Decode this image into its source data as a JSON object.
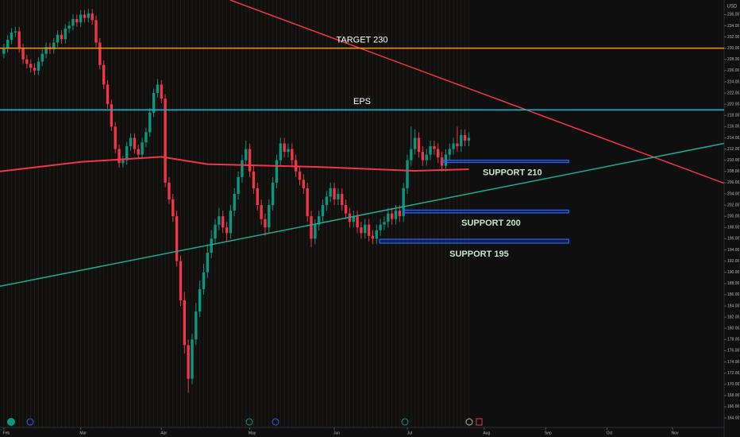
{
  "chart_data": {
    "type": "candlestick",
    "currency": "USD",
    "up_color": "#089981",
    "down_color": "#f23645",
    "xlim": [
      -1,
      186
    ],
    "xticks": [
      {
        "value": 0,
        "label": "Feb"
      },
      {
        "value": 20,
        "label": "Mar"
      },
      {
        "value": 41,
        "label": "Apr"
      },
      {
        "value": 64,
        "label": "May"
      },
      {
        "value": 86,
        "label": "Jun"
      },
      {
        "value": 105,
        "label": "Jul"
      },
      {
        "value": 125,
        "label": "Aug"
      },
      {
        "value": 141,
        "label": "Sep"
      },
      {
        "value": 157,
        "label": "Oct"
      },
      {
        "value": 174,
        "label": "Nov"
      }
    ],
    "ylim": [
      162.3,
      238.6
    ],
    "yticks": [
      {
        "value": 164,
        "label": "164.00"
      },
      {
        "value": 166,
        "label": "166.00"
      },
      {
        "value": 168,
        "label": "168.00"
      },
      {
        "value": 170,
        "label": "170.00"
      },
      {
        "value": 172,
        "label": "172.00"
      },
      {
        "value": 174,
        "label": "174.00"
      },
      {
        "value": 176,
        "label": "176.00"
      },
      {
        "value": 178,
        "label": "178.00"
      },
      {
        "value": 180,
        "label": "180.00"
      },
      {
        "value": 182,
        "label": "182.00"
      },
      {
        "value": 184,
        "label": "184.00"
      },
      {
        "value": 186,
        "label": "186.00"
      },
      {
        "value": 188,
        "label": "188.00"
      },
      {
        "value": 190,
        "label": "190.00"
      },
      {
        "value": 192,
        "label": "192.00"
      },
      {
        "value": 194,
        "label": "194.00"
      },
      {
        "value": 196,
        "label": "196.00"
      },
      {
        "value": 198,
        "label": "198.00"
      },
      {
        "value": 200,
        "label": "200.00"
      },
      {
        "value": 202,
        "label": "202.00"
      },
      {
        "value": 204,
        "label": "204.00"
      },
      {
        "value": 206,
        "label": "206.00"
      },
      {
        "value": 208,
        "label": "208.00"
      },
      {
        "value": 210,
        "label": "210.00"
      },
      {
        "value": 212,
        "label": "212.00"
      },
      {
        "value": 214,
        "label": "214.00"
      },
      {
        "value": 216,
        "label": "216.00"
      },
      {
        "value": 218,
        "label": "218.00"
      },
      {
        "value": 220,
        "label": "220.00"
      },
      {
        "value": 222,
        "label": "222.00"
      },
      {
        "value": 224,
        "label": "224.00"
      },
      {
        "value": 226,
        "label": "226.00"
      },
      {
        "value": 228,
        "label": "228.00"
      },
      {
        "value": 230,
        "label": "230.00"
      },
      {
        "value": 232,
        "label": "232.00"
      },
      {
        "value": 234,
        "label": "234.00"
      },
      {
        "value": 236,
        "label": "236.00"
      }
    ],
    "candles": [
      [
        229,
        230.8,
        228.2,
        230
      ],
      [
        230,
        232.3,
        229.2,
        231.5
      ],
      [
        231.5,
        233.6,
        230.7,
        232.8
      ],
      [
        232.8,
        233.8,
        232,
        233
      ],
      [
        233,
        233.8,
        229.2,
        230
      ],
      [
        230,
        230.8,
        227.2,
        228
      ],
      [
        228,
        228.8,
        226.4,
        227.2
      ],
      [
        227.2,
        228,
        225.7,
        226.5
      ],
      [
        226.5,
        227.3,
        225.2,
        226
      ],
      [
        226,
        228.4,
        225.2,
        227.6
      ],
      [
        227.6,
        229.8,
        226.8,
        229
      ],
      [
        229,
        231,
        228.2,
        230.2
      ],
      [
        230.2,
        231,
        229,
        229.8
      ],
      [
        229.8,
        231.8,
        229,
        231
      ],
      [
        231,
        233.2,
        230.2,
        232.4
      ],
      [
        232.4,
        233.2,
        230.8,
        231.6
      ],
      [
        231.6,
        234.3,
        230.8,
        233.5
      ],
      [
        233.5,
        234.8,
        232.7,
        234
      ],
      [
        234,
        236,
        233.2,
        235.2
      ],
      [
        235.2,
        236,
        233.8,
        234.6
      ],
      [
        234.6,
        236.8,
        233.8,
        236
      ],
      [
        236,
        236.8,
        234.6,
        235.4
      ],
      [
        235.4,
        237,
        234.6,
        236.2
      ],
      [
        236.2,
        237,
        234.2,
        235
      ],
      [
        235,
        235.8,
        230.2,
        231
      ],
      [
        231,
        231.8,
        226.2,
        227
      ],
      [
        227,
        227.8,
        222.7,
        223.5
      ],
      [
        223.5,
        224.3,
        219.2,
        220
      ],
      [
        220,
        220.8,
        215.2,
        216
      ],
      [
        216,
        216.8,
        211.2,
        212
      ],
      [
        212,
        212.8,
        208.7,
        209.5
      ],
      [
        209.5,
        210.8,
        208.7,
        210
      ],
      [
        210,
        213.3,
        209.2,
        212.5
      ],
      [
        212.5,
        214.8,
        211.7,
        214
      ],
      [
        214,
        214.8,
        211.2,
        212
      ],
      [
        212,
        212.8,
        210.2,
        211
      ],
      [
        211,
        214,
        210.2,
        213.2
      ],
      [
        213.2,
        215.8,
        212.4,
        215
      ],
      [
        215,
        219.3,
        214.2,
        218.5
      ],
      [
        218.5,
        222.8,
        217.7,
        222
      ],
      [
        222,
        224.5,
        221.2,
        223.5
      ],
      [
        223.5,
        224.3,
        220.2,
        221
      ],
      [
        221,
        221.8,
        205.2,
        206
      ],
      [
        206,
        207,
        202.2,
        203
      ],
      [
        203,
        204,
        199,
        200
      ],
      [
        200,
        201,
        191,
        192
      ],
      [
        192,
        193,
        184,
        185
      ],
      [
        185,
        186.5,
        175.5,
        177
      ],
      [
        177,
        178,
        168.5,
        171
      ],
      [
        171,
        179,
        170,
        178
      ],
      [
        178,
        184.5,
        177,
        183
      ],
      [
        183,
        188.5,
        182,
        187
      ],
      [
        187,
        191.5,
        186,
        190
      ],
      [
        190,
        195,
        189,
        193.5
      ],
      [
        193.5,
        197.5,
        192.5,
        196
      ],
      [
        196,
        199.5,
        195,
        198.5
      ],
      [
        198.5,
        201.5,
        197.5,
        200
      ],
      [
        200,
        201,
        197,
        198
      ],
      [
        198,
        199,
        195.5,
        197
      ],
      [
        197,
        202,
        196,
        201
      ],
      [
        201,
        205,
        200,
        204
      ],
      [
        204,
        208,
        203,
        207
      ],
      [
        207,
        211,
        206,
        210
      ],
      [
        210,
        213.5,
        209,
        212
      ],
      [
        212,
        213,
        207,
        208
      ],
      [
        208,
        209,
        204,
        205
      ],
      [
        205,
        206,
        201,
        202
      ],
      [
        202,
        203,
        198.5,
        199.5
      ],
      [
        199.5,
        200.5,
        196.5,
        198
      ],
      [
        198,
        203,
        197,
        202
      ],
      [
        202,
        207,
        201,
        206
      ],
      [
        206,
        211,
        205,
        210
      ],
      [
        210,
        214,
        209,
        213
      ],
      [
        213,
        214,
        210.5,
        211.5
      ],
      [
        211.5,
        213,
        210.5,
        212
      ],
      [
        212,
        213,
        209,
        210
      ],
      [
        210,
        211,
        207,
        208
      ],
      [
        208,
        209,
        205.5,
        206.5
      ],
      [
        206.5,
        207.5,
        204,
        205
      ],
      [
        205,
        206,
        199,
        200
      ],
      [
        200,
        201,
        194.5,
        196
      ],
      [
        196,
        199.5,
        195,
        198.5
      ],
      [
        198.5,
        201,
        197.5,
        200
      ],
      [
        200,
        203,
        199,
        202
      ],
      [
        202,
        204.5,
        201,
        203.5
      ],
      [
        203.5,
        206,
        202.5,
        205
      ],
      [
        205,
        206,
        202,
        203
      ],
      [
        203,
        205,
        202,
        204
      ],
      [
        204,
        205,
        201,
        202
      ],
      [
        202,
        203,
        199.5,
        200.5
      ],
      [
        200.5,
        201.5,
        198,
        199
      ],
      [
        199,
        201,
        198,
        200
      ],
      [
        200,
        201,
        197,
        198
      ],
      [
        198,
        199,
        196,
        197
      ],
      [
        197,
        199.5,
        196,
        198.5
      ],
      [
        198.5,
        199.5,
        195.5,
        196.5
      ],
      [
        196.5,
        197.5,
        195,
        196
      ],
      [
        196,
        198.5,
        195,
        197.5
      ],
      [
        197.5,
        199.5,
        196.5,
        198.5
      ],
      [
        198.5,
        200,
        197.5,
        199
      ],
      [
        199,
        201.5,
        198,
        200.5
      ],
      [
        200.5,
        201.5,
        198.5,
        199.5
      ],
      [
        199.5,
        202,
        198.5,
        201
      ],
      [
        201,
        202,
        199,
        200
      ],
      [
        200,
        206,
        199,
        205
      ],
      [
        205,
        211,
        204,
        210
      ],
      [
        210,
        216,
        209,
        212
      ],
      [
        212,
        215.5,
        211,
        214
      ],
      [
        214,
        215,
        210.5,
        211.5
      ],
      [
        211.5,
        212.5,
        209,
        210
      ],
      [
        210,
        212,
        209,
        211
      ],
      [
        211,
        213.5,
        210,
        212.5
      ],
      [
        212.5,
        213.5,
        211,
        212
      ],
      [
        212,
        213,
        209.5,
        210.5
      ],
      [
        210.5,
        211.5,
        208,
        209
      ],
      [
        209,
        212,
        208,
        211
      ],
      [
        211,
        213,
        210,
        212
      ],
      [
        212,
        214,
        211,
        213
      ],
      [
        213,
        216,
        211.5,
        212.5
      ],
      [
        212.5,
        215.5,
        211.5,
        214.5
      ],
      [
        214.5,
        215.5,
        212.5,
        213.5
      ],
      [
        213.5,
        215,
        212.5,
        214
      ]
    ],
    "moving_average": {
      "color": "#f23645",
      "x": [
        -1,
        20,
        41,
        53,
        82,
        107,
        121
      ],
      "values": [
        208,
        209.7,
        210.6,
        209.3,
        208.8,
        208.1,
        208.4
      ]
    },
    "trend_lines": [
      {
        "color": "#f23645",
        "x": [
          58.9,
          187.4
        ],
        "values": [
          238.6,
          205.9
        ]
      },
      {
        "color": "#22ab94",
        "x": [
          -1,
          187.4
        ],
        "values": [
          187.5,
          213
        ]
      }
    ],
    "horizontal_lines": [
      {
        "label": "TARGET 230",
        "color": "#ff9800",
        "value": 230
      },
      {
        "label": "EPS",
        "color": "#00bcd4",
        "value": 219
      }
    ],
    "support_zones": [
      {
        "label": "SUPPORT 210",
        "x": [
          114.3,
          147
        ],
        "values": [
          210,
          209.6
        ]
      },
      {
        "label": "SUPPORT 200",
        "x": [
          104,
          147
        ],
        "values": [
          201.1,
          200.6
        ]
      },
      {
        "label": "SUPPORT 195",
        "x": [
          97.8,
          147
        ],
        "values": [
          195.9,
          195.2
        ]
      }
    ],
    "zone_color": "#2962ff"
  }
}
